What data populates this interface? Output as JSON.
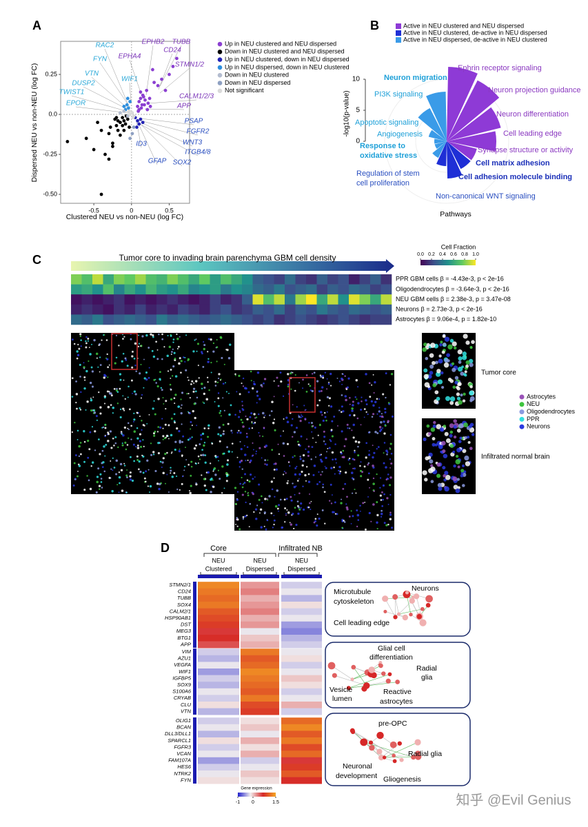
{
  "watermark": "知乎 @Evil Genius",
  "chart_data": [
    {
      "type": "scatter",
      "panel_label": "A",
      "x_label": "Clustered NEU vs non-NEU (log FC)",
      "y_label": "Dispersed NEU vs non-NEU (log FC)",
      "xlim": [
        -0.94,
        0.77
      ],
      "ylim": [
        -0.556,
        0.457
      ],
      "xticks": [
        -0.5,
        0,
        0.5
      ],
      "yticks": [
        {
          "value": -0.5,
          "label": "-0.50"
        },
        -0.25,
        {
          "value": 0,
          "label": "0.0"
        },
        0.25
      ],
      "series": [
        {
          "name": "Up in NEU clustered and NEU dispersed",
          "color": "#8b3fd1",
          "x": [
            0.08,
            0.1,
            0.12,
            0.14,
            0.15,
            0.18,
            0.2,
            0.22,
            0.25,
            0.1,
            0.13,
            0.16,
            0.3,
            0.35,
            0.4,
            0.45,
            0.5,
            0.55,
            0.6,
            0.28,
            0.12,
            0.09,
            0.17,
            0.21,
            0.24
          ],
          "values": [
            0.05,
            0.08,
            0.1,
            0.06,
            0.12,
            0.09,
            0.15,
            0.07,
            0.05,
            0.03,
            0.04,
            0.11,
            0.2,
            0.18,
            0.22,
            0.15,
            0.25,
            0.3,
            0.35,
            0.28,
            0.14,
            0.02,
            0.06,
            0.03,
            0.1
          ]
        },
        {
          "name": "Down in NEU clustered and NEU dispersed",
          "color": "#000000",
          "x": [
            -0.85,
            -0.6,
            -0.5,
            -0.45,
            -0.4,
            -0.35,
            -0.3,
            -0.28,
            -0.25,
            -0.22,
            -0.2,
            -0.18,
            -0.15,
            -0.12,
            -0.1,
            -0.08,
            -0.05,
            -0.03,
            -0.3,
            -0.15,
            -0.2,
            -0.1,
            -0.4,
            -0.25,
            -0.07,
            -0.12,
            -0.18
          ],
          "values": [
            -0.17,
            -0.15,
            -0.22,
            -0.05,
            -0.5,
            -0.25,
            -0.12,
            -0.08,
            -0.2,
            -0.03,
            -0.07,
            -0.1,
            -0.05,
            -0.02,
            -0.04,
            -0.06,
            -0.03,
            -0.08,
            -0.28,
            -0.13,
            -0.02,
            -0.1,
            -0.1,
            -0.18,
            -0.01,
            -0.07,
            -0.04
          ]
        },
        {
          "name": "Up in NEU clustered, down in NEU dispersed",
          "color": "#2323b5",
          "x": [
            0.05,
            0.08,
            0.1,
            0.12,
            0.15,
            0.07
          ],
          "values": [
            -0.02,
            -0.04,
            -0.06,
            -0.03,
            -0.05,
            -0.08
          ]
        },
        {
          "name": "Up in NEU dispersed, down in NEU clustered",
          "color": "#2e8fde",
          "x": [
            -0.08,
            -0.06,
            -0.04,
            -0.02,
            -0.05,
            -0.1
          ],
          "values": [
            0.03,
            0.06,
            0.04,
            0.08,
            0.1,
            0.05
          ]
        },
        {
          "name": "Down in NEU clustered",
          "color": "#b3bccf",
          "x": [
            -0.15,
            -0.1,
            -0.05
          ],
          "values": [
            0.01,
            0.02,
            -0.01
          ]
        },
        {
          "name": "Down in NEU dispersed",
          "color": "#8ea0c2",
          "x": [
            0.01,
            0.03,
            -0.02
          ],
          "values": [
            -0.12,
            -0.08,
            -0.15
          ]
        },
        {
          "name": "Not significant",
          "color": "#d9d9d9",
          "x": [
            -0.02,
            0.01,
            0.03,
            -0.03,
            0.02
          ],
          "values": [
            0.0,
            0.01,
            -0.01,
            0.02,
            -0.02
          ]
        }
      ],
      "annotations": [
        {
          "text": "RAC2",
          "color": "#2aa8d8"
        },
        {
          "text": "FYN",
          "color": "#2aa8d8"
        },
        {
          "text": "VTN",
          "color": "#2aa8d8"
        },
        {
          "text": "DUSP2",
          "color": "#2aa8d8"
        },
        {
          "text": "TWIST1",
          "color": "#2aa8d8"
        },
        {
          "text": "EPOR",
          "color": "#2aa8d8"
        },
        {
          "text": "WIF1",
          "color": "#2aa8d8"
        },
        {
          "text": "EPHB2",
          "color": "#7b35b8"
        },
        {
          "text": "TUBB",
          "color": "#7b35b8"
        },
        {
          "text": "CD24",
          "color": "#7b35b8"
        },
        {
          "text": "STMN1/2",
          "color": "#7b35b8"
        },
        {
          "text": "EPHA4",
          "color": "#7b35b8"
        },
        {
          "text": "CALM1/2/3",
          "color": "#7b35b8"
        },
        {
          "text": "APP",
          "color": "#7b35b8"
        },
        {
          "text": "PSAP",
          "color": "#2a4fc0"
        },
        {
          "text": "FGFR2",
          "color": "#2a4fc0"
        },
        {
          "text": "WNT3",
          "color": "#2a4fc0"
        },
        {
          "text": "ITGB4/8",
          "color": "#2a4fc0"
        },
        {
          "text": "ID3",
          "color": "#2a4fc0"
        },
        {
          "text": "GFAP",
          "color": "#2a4fc0"
        },
        {
          "text": "SOX2",
          "color": "#2a4fc0"
        }
      ]
    },
    {
      "type": "rose",
      "panel_label": "B",
      "r_label": "-log10(p-value)",
      "x_label": "Pathways",
      "rlim": [
        0,
        13
      ],
      "rticks": [
        0,
        5,
        10
      ],
      "legend": [
        {
          "name": "Active in NEU clustered and NEU dispersed",
          "color": "#8e3ad6"
        },
        {
          "name": "Active in NEU clustered, de-active in NEU dispersed",
          "color": "#1f2fd6"
        },
        {
          "name": "Active in NEU dispersed, de-active in NEU clustered",
          "color": "#3a9be8"
        }
      ],
      "categories": [
        "Ephrin receptor signaling",
        "Neuron projection guidance",
        "Neuron differentiation",
        "Cell leading edge",
        "Synapse structure or activity",
        "Cell matrix adhesion",
        "Cell adhesion molecule binding",
        "Non-canonical WNT signaling",
        [
          "Regulation of stem",
          "cell proliferation"
        ],
        [
          "Response to",
          "oxidative stress"
        ],
        "Angiogenesis",
        "Apoptotic signaling",
        "PI3K signaling",
        "Neuron migration"
      ],
      "values": [
        12,
        11,
        9,
        8,
        5,
        5,
        6,
        4,
        3,
        2,
        2,
        3,
        6,
        8
      ],
      "colors": [
        "#8e3ad6",
        "#8e3ad6",
        "#8e3ad6",
        "#8e3ad6",
        "#8e3ad6",
        "#1f2fd6",
        "#1f2fd6",
        "#1f2fd6",
        "#3a9be8",
        "#3a9be8",
        "#3a9be8",
        "#3a9be8",
        "#3a9be8",
        "#3a9be8"
      ]
    },
    {
      "type": "heatmap",
      "panel_label": "C",
      "title": "Tumor core to invading brain parenchyma GBM cell density",
      "colorbar_title": "Cell Fraction",
      "clim": [
        0,
        1
      ],
      "cticks": [
        {
          "value": 0,
          "label": "0.0"
        },
        0.2,
        0.4,
        0.6,
        0.8,
        {
          "value": 1,
          "label": "1.0"
        }
      ],
      "rows": [
        "PPR GBM cells β = -4.43e-3, p < 2e-16",
        "Oligodendrocytes β = -3.64e-3, p < 2e-16",
        "NEU GBM cells β = 2.38e-3, p = 3.47e-08",
        "Neurons β = 2.73e-3, p < 2e-16",
        "Astrocytes β = 9.06e-4, p = 1.82e-10"
      ],
      "values": [
        [
          0.8,
          0.7,
          0.9,
          0.6,
          0.8,
          0.75,
          0.85,
          0.7,
          0.65,
          0.8,
          0.7,
          0.6,
          0.75,
          0.55,
          0.7,
          0.6,
          0.5,
          0.3,
          0.25,
          0.2,
          0.35,
          0.2,
          0.15,
          0.3,
          0.2,
          0.25,
          0.1,
          0.2,
          0.3,
          0.15
        ],
        [
          0.55,
          0.6,
          0.5,
          0.7,
          0.45,
          0.6,
          0.5,
          0.65,
          0.55,
          0.5,
          0.6,
          0.45,
          0.5,
          0.55,
          0.4,
          0.5,
          0.45,
          0.35,
          0.3,
          0.4,
          0.25,
          0.3,
          0.35,
          0.2,
          0.3,
          0.25,
          0.35,
          0.3,
          0.2,
          0.25
        ],
        [
          0.05,
          0.1,
          0.05,
          0.1,
          0.15,
          0.05,
          0.1,
          0.05,
          0.1,
          0.15,
          0.1,
          0.05,
          0.1,
          0.2,
          0.1,
          0.15,
          0.3,
          0.95,
          0.7,
          0.9,
          0.4,
          0.85,
          1.0,
          0.6,
          0.9,
          0.5,
          0.95,
          0.8,
          0.6,
          0.9
        ],
        [
          0.1,
          0.15,
          0.1,
          0.05,
          0.15,
          0.1,
          0.2,
          0.1,
          0.15,
          0.1,
          0.2,
          0.15,
          0.1,
          0.2,
          0.25,
          0.15,
          0.2,
          0.3,
          0.25,
          0.35,
          0.2,
          0.3,
          0.25,
          0.4,
          0.3,
          0.25,
          0.35,
          0.3,
          0.25,
          0.3
        ],
        [
          0.35,
          0.3,
          0.4,
          0.25,
          0.3,
          0.35,
          0.3,
          0.25,
          0.4,
          0.3,
          0.35,
          0.3,
          0.25,
          0.3,
          0.35,
          0.3,
          0.25,
          0.2,
          0.25,
          0.15,
          0.2,
          0.25,
          0.2,
          0.15,
          0.2,
          0.25,
          0.2,
          0.15,
          0.2,
          0.2
        ]
      ],
      "insets": [
        "Tumor core",
        "Infiltrated normal brain"
      ],
      "cell_legend": [
        {
          "name": "Astrocytes",
          "color": "#9a52b8"
        },
        {
          "name": "NEU",
          "color": "#3ec43e"
        },
        {
          "name": "Oligodendrocytes",
          "color": "#8a9ae0"
        },
        {
          "name": "PPR",
          "color": "#30e0e0"
        },
        {
          "name": "Neurons",
          "color": "#2a3ae0"
        }
      ]
    },
    {
      "type": "heatmap",
      "panel_label": "D",
      "groups": [
        "Core",
        "Infiltrated NB"
      ],
      "columns": [
        [
          "NEU",
          "Clustered"
        ],
        [
          "NEU",
          "Dispersed"
        ],
        [
          "NEU",
          "Dispersed"
        ]
      ],
      "colorbar_title": "Gene expression",
      "clim": [
        -1,
        1.5
      ],
      "cticks": [
        -1,
        0,
        1.5
      ],
      "colormap": [
        "#2222cc",
        "#f2eeee",
        "#d62828",
        "#f5a623"
      ],
      "rows": [
        "STMN2/1",
        "CD24",
        "TUBB",
        "SOX4",
        "CALM2/1",
        "HSP90AB1",
        "DST",
        "MEG3",
        "BTG1",
        "APP",
        "VIM",
        "AZU1",
        "VEGFA",
        "WIF1",
        "IGFBP5",
        "SOX9",
        "S100A6",
        "CRYAB",
        "CLU",
        "VTN",
        "OLIG1",
        "BCAN",
        "DLL3/DLL1",
        "SPARCL1",
        "FGFR3",
        "VCAN",
        "FAM107A",
        "HES6",
        "NTRK2",
        "FYN"
      ],
      "values": [
        [
          1.3,
          0.2,
          -0.3
        ],
        [
          1.2,
          0.3,
          -0.2
        ],
        [
          1.1,
          0.1,
          -0.4
        ],
        [
          1.2,
          0.2,
          -0.1
        ],
        [
          1.0,
          0.3,
          -0.3
        ],
        [
          0.9,
          0.1,
          -0.2
        ],
        [
          0.8,
          0.2,
          -0.5
        ],
        [
          0.6,
          -0.2,
          -0.6
        ],
        [
          0.7,
          0.0,
          -0.4
        ],
        [
          0.5,
          0.1,
          -0.3
        ],
        [
          -0.3,
          1.2,
          -0.2
        ],
        [
          -0.4,
          1.0,
          -0.1
        ],
        [
          -0.2,
          1.1,
          -0.3
        ],
        [
          -0.5,
          1.3,
          -0.2
        ],
        [
          -0.3,
          1.2,
          0.0
        ],
        [
          -0.4,
          1.1,
          -0.1
        ],
        [
          -0.2,
          1.0,
          -0.3
        ],
        [
          -0.3,
          1.2,
          -0.2
        ],
        [
          -0.1,
          0.9,
          0.1
        ],
        [
          -0.4,
          0.8,
          -0.3
        ],
        [
          -0.3,
          -0.1,
          1.1
        ],
        [
          -0.2,
          0.0,
          1.3
        ],
        [
          -0.4,
          -0.2,
          1.0
        ],
        [
          -0.1,
          0.1,
          1.2
        ],
        [
          -0.3,
          -0.1,
          0.9
        ],
        [
          -0.2,
          0.1,
          1.1
        ],
        [
          -0.5,
          -0.3,
          0.6
        ],
        [
          -0.3,
          -0.2,
          0.8
        ],
        [
          -0.2,
          0.0,
          1.0
        ],
        [
          -0.1,
          -0.1,
          0.7
        ]
      ],
      "networks": [
        [
          [
            "Microtubule",
            "cytoskeleton"
          ],
          [
            "Neurons"
          ],
          [
            "Cell leading edge"
          ]
        ],
        [
          [
            "Glial cell",
            "differentiation"
          ],
          [
            "Radial",
            "glia"
          ],
          [
            "Vesicle",
            "lumen"
          ],
          [
            "Reactive",
            "astrocytes"
          ]
        ],
        [
          [
            "pre-OPC"
          ],
          [
            "Radial glia"
          ],
          [
            "Neuronal",
            "development"
          ],
          [
            "Gliogenesis"
          ]
        ]
      ]
    }
  ]
}
